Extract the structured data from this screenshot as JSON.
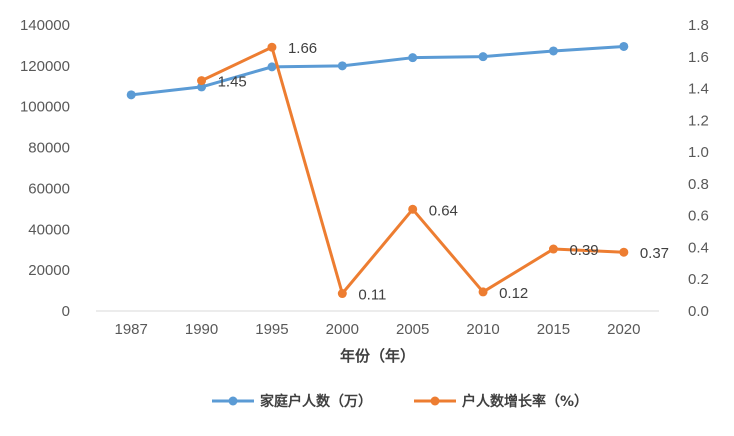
{
  "chart_data": {
    "type": "line",
    "xlabel": "年份（年）",
    "categories": [
      "1987",
      "1990",
      "1995",
      "2000",
      "2005",
      "2010",
      "2015",
      "2020"
    ],
    "y_left": {
      "ylim": [
        0,
        140000
      ],
      "ticks": [
        "0",
        "20000",
        "40000",
        "60000",
        "80000",
        "100000",
        "120000",
        "140000"
      ]
    },
    "y_right": {
      "ylim": [
        0,
        1.8
      ],
      "ticks": [
        "0.0",
        "0.2",
        "0.4",
        "0.6",
        "0.8",
        "1.0",
        "1.2",
        "1.4",
        "1.6",
        "1.8"
      ]
    },
    "series": [
      {
        "name": "家庭户人数（万）",
        "axis": "left",
        "color": "#5B9BD5",
        "values": [
          105800,
          109700,
          119500,
          120000,
          124000,
          124500,
          127300,
          129500
        ]
      },
      {
        "name": "户人数增长率（%）",
        "axis": "right",
        "color": "#ED7D31",
        "values": [
          null,
          1.45,
          1.66,
          0.11,
          0.64,
          0.12,
          0.39,
          0.37
        ],
        "labels": [
          null,
          "1.45",
          "1.66",
          "0.11",
          "0.64",
          "0.12",
          "0.39",
          "0.37"
        ]
      }
    ],
    "grid": false,
    "legend_position": "bottom"
  }
}
